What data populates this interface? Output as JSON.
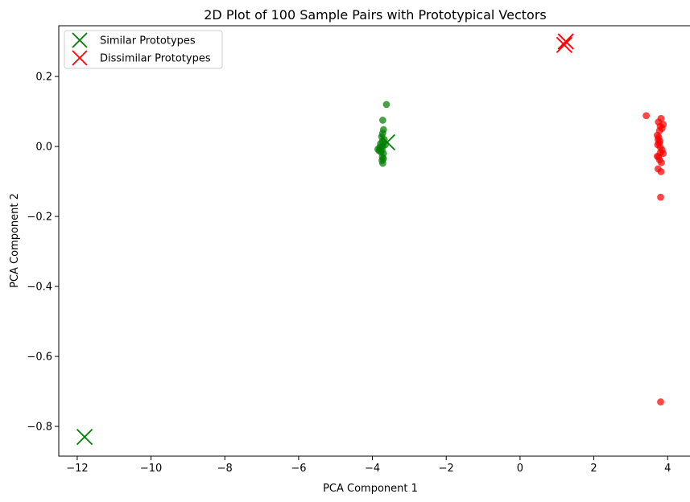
{
  "chart_data": {
    "type": "scatter",
    "title": "2D Plot of 100 Sample Pairs with Prototypical Vectors",
    "xlabel": "PCA Component 1",
    "ylabel": "PCA Component 2",
    "xlim": [
      -12.5,
      4.65
    ],
    "ylim": [
      -0.885,
      0.345
    ],
    "xticks": [
      -12,
      -10,
      -8,
      -6,
      -4,
      -2,
      0,
      2,
      4
    ],
    "xtick_labels": [
      "−12",
      "−10",
      "−8",
      "−6",
      "−4",
      "−2",
      "0",
      "2",
      "4"
    ],
    "yticks": [
      -0.8,
      -0.6,
      -0.4,
      -0.2,
      0.0,
      0.2
    ],
    "ytick_labels": [
      "−0.8",
      "−0.6",
      "−0.4",
      "−0.2",
      "0.0",
      "0.2"
    ],
    "grid": false,
    "legend_position": "top-left",
    "colors": {
      "similar": "#008000",
      "dissimilar": "#ff0000"
    },
    "series": [
      {
        "kind": "points",
        "color_key": "similar",
        "points": [
          [
            -3.62,
            0.12
          ],
          [
            -3.72,
            0.075
          ],
          [
            -3.7,
            0.048
          ],
          [
            -3.72,
            0.038
          ],
          [
            -3.75,
            0.028
          ],
          [
            -3.68,
            0.02
          ],
          [
            -3.73,
            0.015
          ],
          [
            -3.78,
            0.008
          ],
          [
            -3.65,
            0.005
          ],
          [
            -3.72,
            0.0
          ],
          [
            -3.8,
            -0.002
          ],
          [
            -3.85,
            -0.008
          ],
          [
            -3.74,
            -0.01
          ],
          [
            -3.82,
            -0.012
          ],
          [
            -3.77,
            -0.016
          ],
          [
            -3.7,
            -0.02
          ],
          [
            -3.73,
            -0.03
          ],
          [
            -3.7,
            -0.035
          ],
          [
            -3.74,
            -0.04
          ],
          [
            -3.72,
            -0.048
          ]
        ]
      },
      {
        "kind": "points",
        "color_key": "dissimilar",
        "points": [
          [
            3.42,
            0.088
          ],
          [
            3.82,
            0.08
          ],
          [
            3.75,
            0.07
          ],
          [
            3.88,
            0.063
          ],
          [
            3.8,
            0.058
          ],
          [
            3.85,
            0.052
          ],
          [
            3.78,
            0.045
          ],
          [
            3.72,
            0.032
          ],
          [
            3.76,
            0.026
          ],
          [
            3.74,
            0.02
          ],
          [
            3.79,
            0.015
          ],
          [
            3.77,
            0.01
          ],
          [
            3.73,
            0.005
          ],
          [
            3.8,
            -0.002
          ],
          [
            3.85,
            -0.01
          ],
          [
            3.88,
            -0.02
          ],
          [
            3.8,
            -0.018
          ],
          [
            3.75,
            -0.03
          ],
          [
            3.72,
            -0.028
          ],
          [
            3.78,
            -0.038
          ],
          [
            3.83,
            -0.046
          ],
          [
            3.74,
            -0.064
          ],
          [
            3.82,
            -0.072
          ],
          [
            3.81,
            -0.145
          ],
          [
            3.81,
            -0.73
          ]
        ]
      },
      {
        "name": "Similar Prototypes",
        "kind": "prototypes",
        "color_key": "similar",
        "points": [
          [
            -11.8,
            -0.83
          ],
          [
            -3.6,
            0.012
          ]
        ]
      },
      {
        "name": "Dissimilar Prototypes",
        "kind": "prototypes",
        "color_key": "dissimilar",
        "points": [
          [
            1.2,
            0.29
          ],
          [
            1.24,
            0.3
          ]
        ]
      }
    ]
  }
}
